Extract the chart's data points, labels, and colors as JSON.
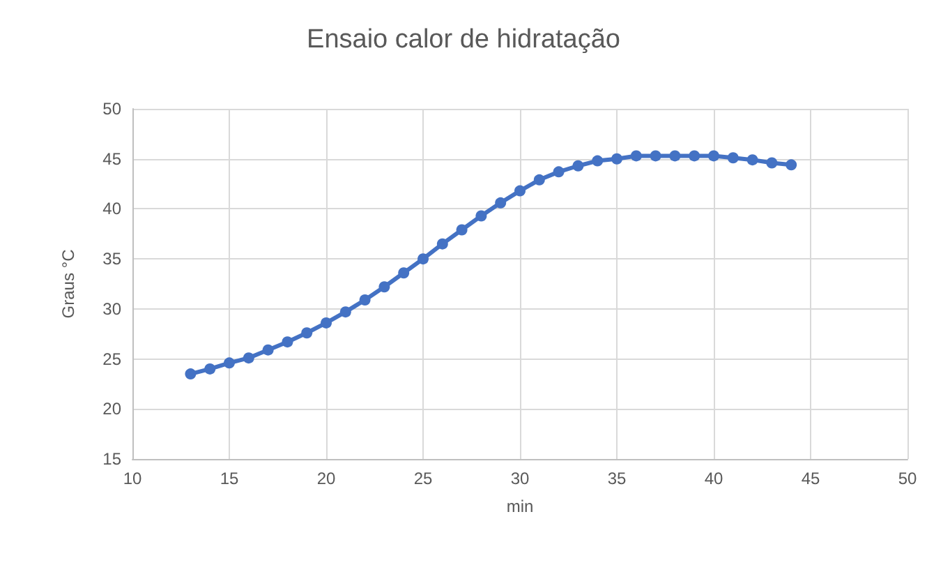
{
  "chart_data": {
    "type": "line",
    "title": "Ensaio calor de hidratação",
    "xlabel": "min",
    "ylabel": "Graus °C",
    "x": [
      13,
      14,
      15,
      16,
      17,
      18,
      19,
      20,
      21,
      22,
      23,
      24,
      25,
      26,
      27,
      28,
      29,
      30,
      31,
      32,
      33,
      34,
      35,
      36,
      37,
      38,
      39,
      40,
      41,
      42,
      43,
      44
    ],
    "series": [
      {
        "color": "#4472c4",
        "values": [
          23.5,
          24,
          24.6,
          25.1,
          25.9,
          26.7,
          27.6,
          28.6,
          29.7,
          30.9,
          32.2,
          33.6,
          35.0,
          36.5,
          37.9,
          39.3,
          40.6,
          41.8,
          42.9,
          43.7,
          44.3,
          44.8,
          45.0,
          45.3,
          45.3,
          45.3,
          45.3,
          45.3,
          45.1,
          44.9,
          44.6,
          44.4
        ]
      }
    ],
    "xlim": [
      10,
      50
    ],
    "xticks": [
      10,
      15,
      20,
      25,
      30,
      35,
      40,
      45,
      50
    ],
    "ylim": [
      15,
      50
    ],
    "yticks": [
      15,
      20,
      25,
      30,
      35,
      40,
      45,
      50
    ],
    "grid": true,
    "marker": "circle",
    "line_style": "solid"
  }
}
